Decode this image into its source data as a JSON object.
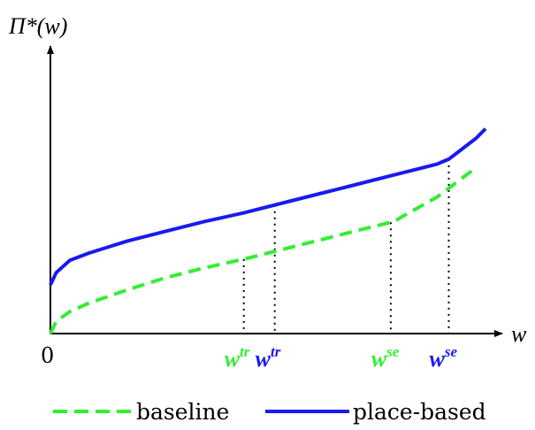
{
  "chart_data": {
    "type": "line",
    "ylabel": "Π*(w)",
    "xlabel": "w",
    "origin_label": "0",
    "colors": {
      "baseline": "#33ee33",
      "place_based": "#1a1aee",
      "axis": "#000000",
      "guide": "#000000"
    },
    "xlim": [
      0,
      1.15
    ],
    "ylim": [
      0,
      1.15
    ],
    "series": [
      {
        "name": "baseline",
        "style": "dashed",
        "points": [
          [
            0,
            0.0
          ],
          [
            0.015,
            0.05
          ],
          [
            0.05,
            0.09
          ],
          [
            0.1,
            0.125
          ],
          [
            0.2,
            0.18
          ],
          [
            0.3,
            0.23
          ],
          [
            0.4,
            0.27
          ],
          [
            0.5,
            0.305
          ],
          [
            0.6,
            0.345
          ],
          [
            0.7,
            0.385
          ],
          [
            0.8,
            0.425
          ],
          [
            0.89,
            0.46
          ],
          [
            0.91,
            0.48
          ],
          [
            1.0,
            0.56
          ],
          [
            1.05,
            0.62
          ],
          [
            1.1,
            0.68
          ]
        ]
      },
      {
        "name": "place-based",
        "style": "solid",
        "points": [
          [
            0,
            0.2
          ],
          [
            0.015,
            0.25
          ],
          [
            0.05,
            0.3
          ],
          [
            0.1,
            0.33
          ],
          [
            0.2,
            0.38
          ],
          [
            0.3,
            0.42
          ],
          [
            0.4,
            0.46
          ],
          [
            0.5,
            0.495
          ],
          [
            0.6,
            0.535
          ],
          [
            0.7,
            0.575
          ],
          [
            0.8,
            0.615
          ],
          [
            0.9,
            0.655
          ],
          [
            1.0,
            0.695
          ],
          [
            1.03,
            0.715
          ],
          [
            1.1,
            0.8
          ],
          [
            1.125,
            0.84
          ]
        ]
      }
    ],
    "markers": [
      {
        "label": "w",
        "sup": "tr",
        "color": "#33ee33",
        "x": 0.5
      },
      {
        "label": "w",
        "sup": "tr",
        "color": "#1a1aee",
        "x": 0.58
      },
      {
        "label": "w",
        "sup": "se",
        "color": "#33ee33",
        "x": 0.88
      },
      {
        "label": "w",
        "sup": "se",
        "color": "#1a1aee",
        "x": 1.03
      }
    ],
    "legend": {
      "position": "bottom",
      "items": [
        {
          "label": "baseline",
          "style": "dashed",
          "color": "#33ee33"
        },
        {
          "label": "place-based",
          "style": "solid",
          "color": "#1a1aee"
        }
      ]
    }
  }
}
